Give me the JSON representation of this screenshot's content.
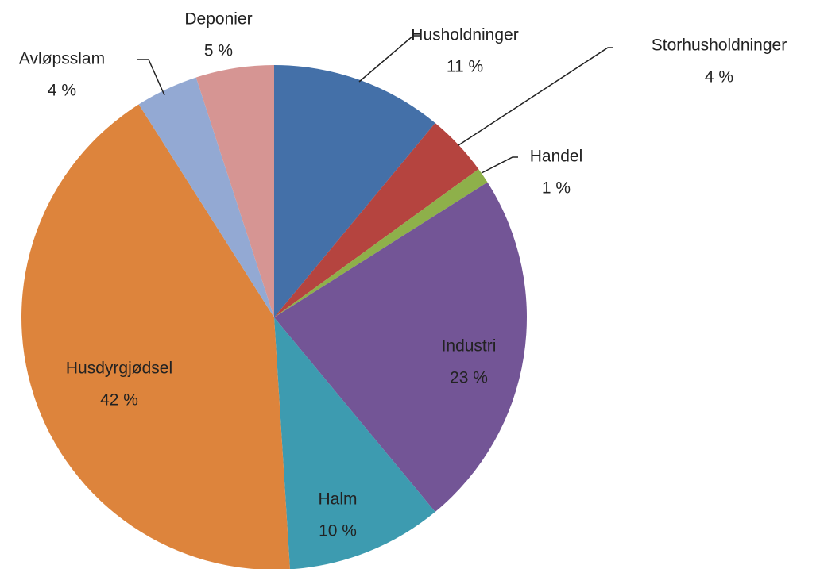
{
  "chart_data": {
    "type": "pie",
    "categories": [
      "Husholdninger",
      "Storhusholdninger",
      "Handel",
      "Industri",
      "Halm",
      "Husdyrgjødsel",
      "Avløpsslam",
      "Deponier"
    ],
    "values": [
      11,
      4,
      1,
      23,
      10,
      42,
      4,
      5
    ],
    "value_labels": [
      "11 %",
      "4 %",
      "1 %",
      "23 %",
      "10 %",
      "42 %",
      "4 %",
      "5 %"
    ],
    "colors": [
      "#4470a8",
      "#b5443f",
      "#8eb04a",
      "#735596",
      "#3d9bb0",
      "#dd843c",
      "#93a9d3",
      "#d69593"
    ]
  }
}
